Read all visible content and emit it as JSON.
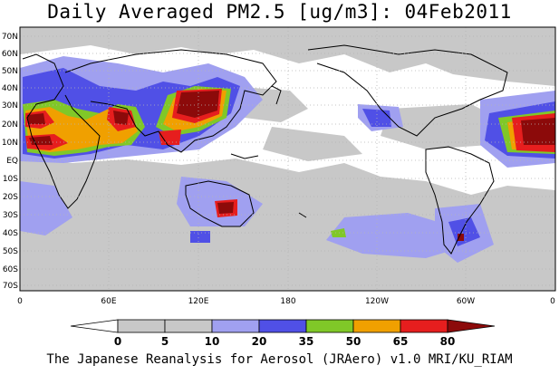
{
  "title": "Daily Averaged PM2.5 [ug/m3]: 04Feb2011",
  "credit": "The Japanese Reanalysis for Aerosol (JRAero) v1.0 MRI/KU_RIAM",
  "lat_labels": [
    "70N",
    "60N",
    "50N",
    "40N",
    "30N",
    "20N",
    "10N",
    "EQ",
    "10S",
    "20S",
    "30S",
    "40S",
    "50S",
    "60S",
    "70S"
  ],
  "lon_labels": [
    "0",
    "60E",
    "120E",
    "180",
    "120W",
    "60W",
    "0"
  ],
  "colorbar": {
    "ticks": [
      "0",
      "5",
      "10",
      "20",
      "35",
      "50",
      "65",
      "80"
    ],
    "colors": [
      "#ffffff",
      "#c8c8c8",
      "#a0a0f0",
      "#5050e6",
      "#80c828",
      "#f0a000",
      "#e61e1e",
      "#8c0a0a"
    ]
  },
  "map_colors": {
    "ocean": "#ffffff",
    "grid": "#b4b4b4",
    "coast": "#000000"
  }
}
